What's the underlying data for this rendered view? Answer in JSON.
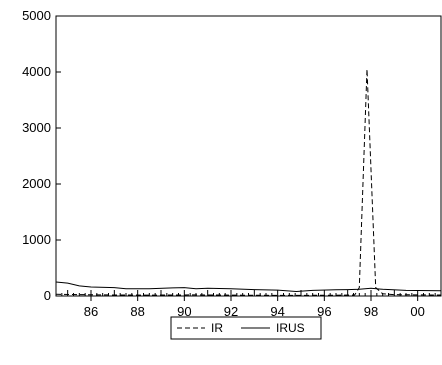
{
  "chart_data": {
    "type": "line",
    "title": "",
    "xlabel": "",
    "ylabel": "",
    "xlim": [
      1984.5,
      2001.0
    ],
    "ylim": [
      0,
      5000
    ],
    "yticks": [
      0,
      1000,
      2000,
      3000,
      4000,
      5000
    ],
    "ytick_labels": [
      "0",
      "1000",
      "2000",
      "3000",
      "4000",
      "5000"
    ],
    "xticks": [
      1986,
      1988,
      1990,
      1992,
      1994,
      1996,
      1998,
      2000
    ],
    "xtick_labels": [
      "86",
      "88",
      "90",
      "92",
      "94",
      "96",
      "98",
      "00"
    ],
    "grid": false,
    "legend_position": "bottom-center",
    "series": [
      {
        "name": "IR",
        "style": "dashed",
        "color": "#000000",
        "points": [
          [
            1984.5,
            30
          ],
          [
            1985.5,
            25
          ],
          [
            1986.5,
            20
          ],
          [
            1987.5,
            18
          ],
          [
            1988.5,
            16
          ],
          [
            1989.5,
            18
          ],
          [
            1990.5,
            20
          ],
          [
            1991.5,
            18
          ],
          [
            1992.5,
            15
          ],
          [
            1993.5,
            12
          ],
          [
            1994.5,
            10
          ],
          [
            1995.5,
            12
          ],
          [
            1996.5,
            15
          ],
          [
            1997.3,
            20
          ],
          [
            1997.5,
            150
          ],
          [
            1997.83,
            4050
          ],
          [
            1998.2,
            150
          ],
          [
            1998.5,
            40
          ],
          [
            1999.0,
            25
          ],
          [
            2000.0,
            20
          ],
          [
            2001.0,
            18
          ]
        ]
      },
      {
        "name": "IRUS",
        "style": "solid",
        "color": "#000000",
        "points": [
          [
            1984.5,
            250
          ],
          [
            1985.0,
            230
          ],
          [
            1985.5,
            180
          ],
          [
            1986.0,
            160
          ],
          [
            1987.0,
            150
          ],
          [
            1987.5,
            130
          ],
          [
            1988.5,
            130
          ],
          [
            1989.5,
            145
          ],
          [
            1990.0,
            150
          ],
          [
            1990.5,
            130
          ],
          [
            1991.0,
            140
          ],
          [
            1992.0,
            130
          ],
          [
            1993.0,
            115
          ],
          [
            1994.0,
            105
          ],
          [
            1994.8,
            80
          ],
          [
            1995.5,
            100
          ],
          [
            1996.5,
            110
          ],
          [
            1997.0,
            115
          ],
          [
            1997.5,
            120
          ],
          [
            1998.0,
            140
          ],
          [
            1998.5,
            120
          ],
          [
            1999.5,
            100
          ],
          [
            2001.0,
            95
          ]
        ]
      }
    ]
  },
  "legend": {
    "ir_label": "IR",
    "irus_label": "IRUS"
  }
}
